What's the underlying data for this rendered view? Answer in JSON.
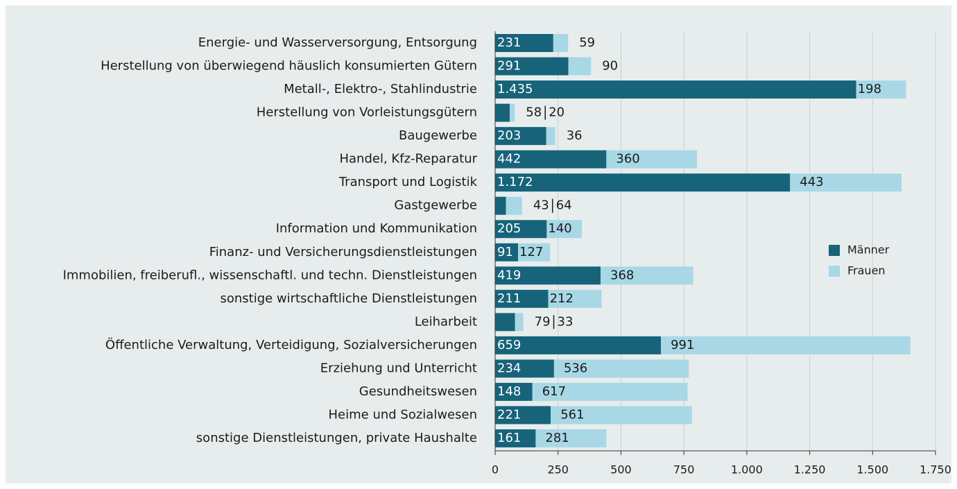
{
  "chart_data": {
    "type": "bar",
    "orientation": "horizontal",
    "stacked": true,
    "categories": [
      "Energie- und Wasserversorgung, Entsorgung",
      "Herstellung von überwiegend häuslich konsumierten Gütern",
      "Metall-, Elektro-, Stahlindustrie",
      "Herstellung von Vorleistungsgütern",
      "Baugewerbe",
      "Handel, Kfz-Reparatur",
      "Transport und Logistik",
      "Gastgewerbe",
      "Information und Kommunikation",
      "Finanz- und Versicherungsdienstleistungen",
      "Immobilien, freiberufl., wissenschaftl. und techn. Dienstleistungen",
      "sonstige wirtschaftliche Dienstleistungen",
      "Leiharbeit",
      "Öffentliche Verwaltung, Verteidigung, Sozialversicherungen",
      "Erziehung und Unterricht",
      "Gesundheitswesen",
      "Heime und Sozialwesen",
      "sonstige Dienstleistungen, private Haushalte"
    ],
    "series": [
      {
        "name": "Männer",
        "color": "#17647a",
        "values": [
          231,
          291,
          1435,
          58,
          203,
          442,
          1172,
          43,
          205,
          91,
          419,
          211,
          79,
          659,
          234,
          148,
          221,
          161
        ],
        "value_labels": [
          "231",
          "291",
          "1.435",
          "58",
          "203",
          "442",
          "1.172",
          "43",
          "205",
          "91",
          "419",
          "211",
          "79",
          "659",
          "234",
          "148",
          "221",
          "161"
        ]
      },
      {
        "name": "Frauen",
        "color": "#a8d8e6",
        "values": [
          59,
          90,
          198,
          20,
          36,
          360,
          443,
          64,
          140,
          127,
          368,
          212,
          33,
          991,
          536,
          617,
          561,
          281
        ]
      }
    ],
    "xlim": [
      0,
      1750
    ],
    "xticks": [
      0,
      250,
      500,
      750,
      {
        "value": 1000,
        "label": "1.000"
      },
      {
        "value": 1250,
        "label": "1.250"
      },
      {
        "value": 1500,
        "label": "1.500"
      },
      {
        "value": 1750,
        "label": "1.750"
      }
    ],
    "grid": true,
    "legend": "right"
  }
}
